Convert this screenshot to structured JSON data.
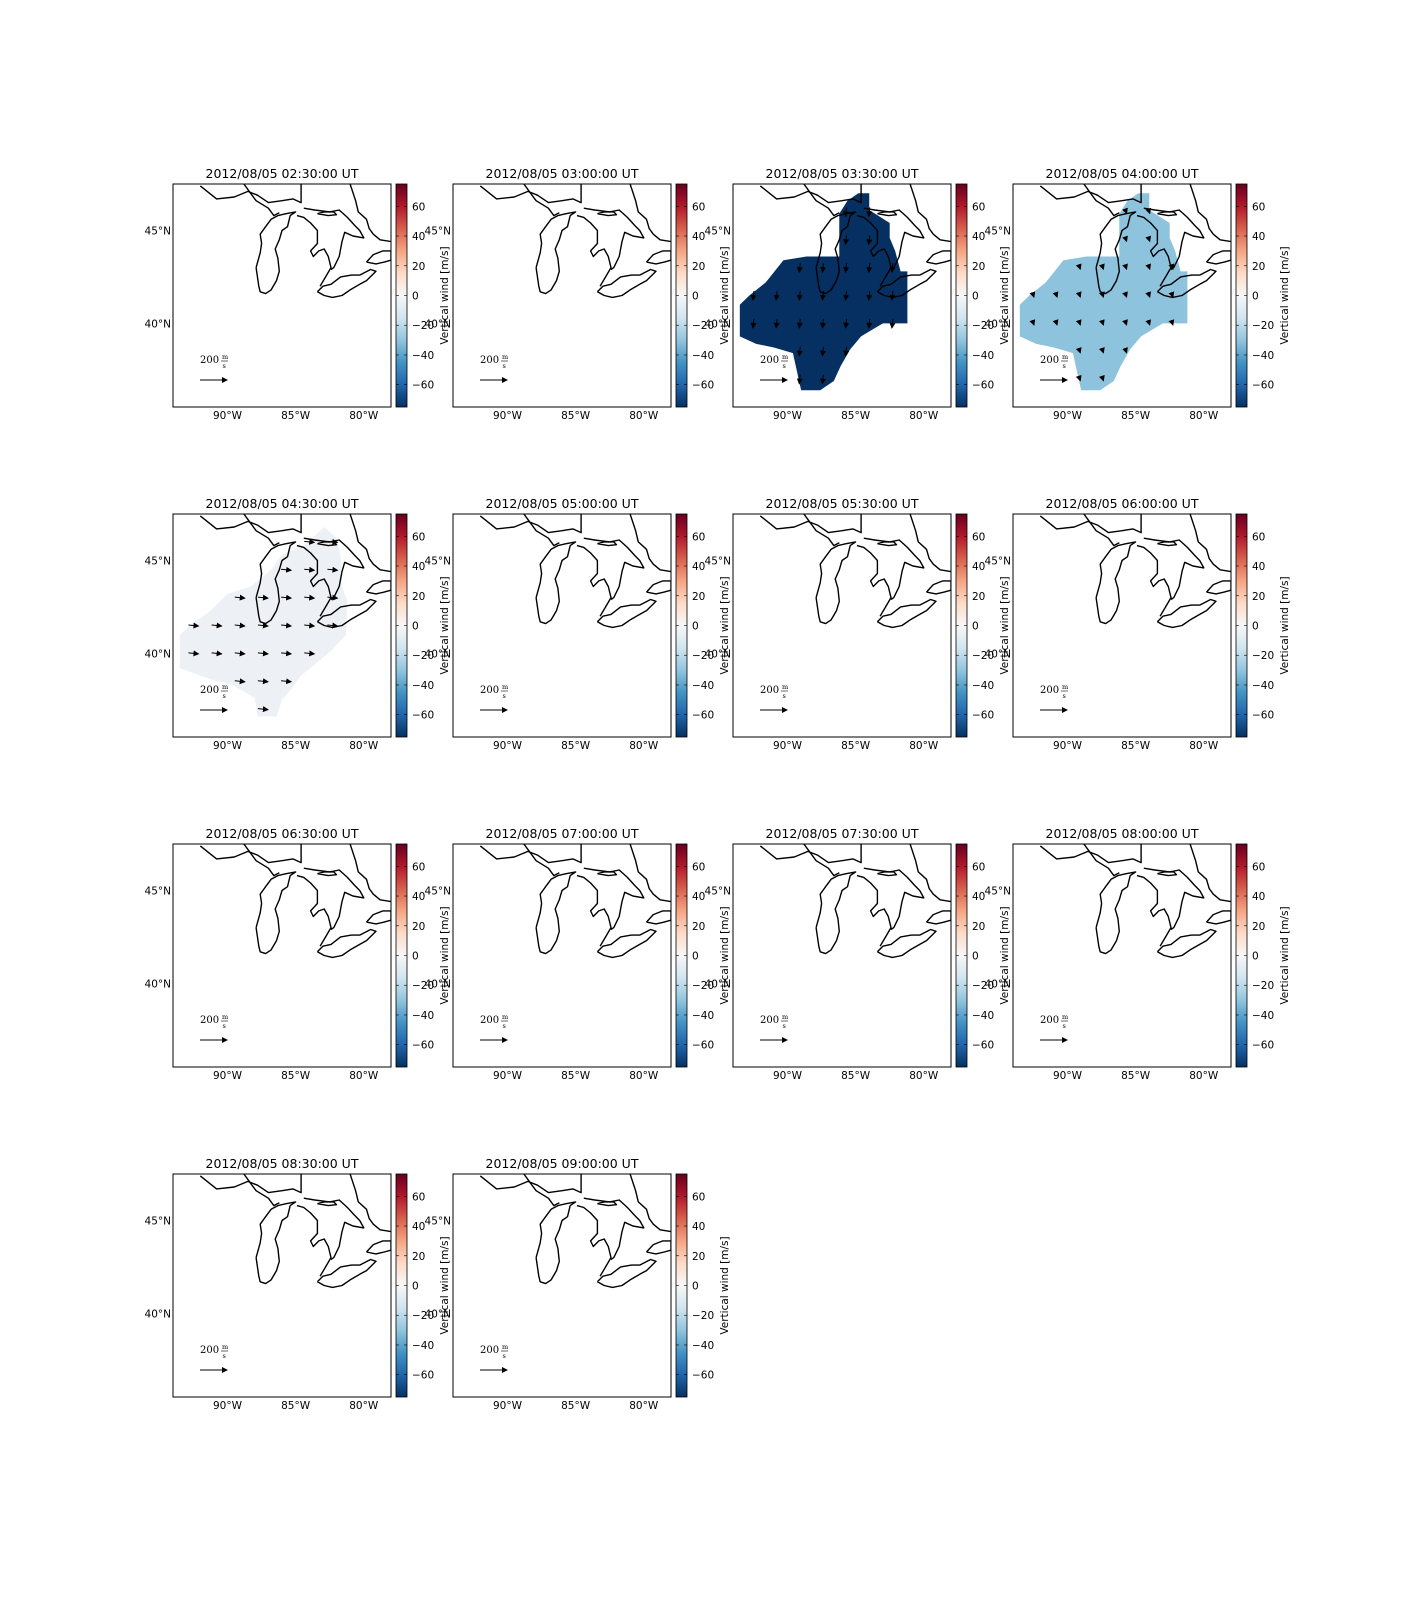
{
  "figure": {
    "colorbar": {
      "label": "Vertical wind [m/s]",
      "ticks": [
        "60",
        "40",
        "20",
        "0",
        "−20",
        "−40",
        "−60"
      ],
      "tick_values": [
        60,
        40,
        20,
        0,
        -20,
        -40,
        -60
      ],
      "range": [
        -75,
        75
      ],
      "colormap": "RdBu_r",
      "stops": [
        "#053061",
        "#2166ac",
        "#4393c3",
        "#92c5de",
        "#d1e5f0",
        "#f7f7f7",
        "#fddbc7",
        "#f4a582",
        "#d6604d",
        "#b2182b",
        "#67001f"
      ]
    },
    "axes_ticks": {
      "lon_labels": [
        "90°W",
        "85°W",
        "80°W"
      ],
      "lon_values": [
        -90,
        -85,
        -80
      ],
      "lat_labels": [
        "45°N",
        "40°N"
      ],
      "lat_values": [
        45,
        40
      ],
      "lon_range": [
        -94,
        -78
      ],
      "lat_range": [
        35.5,
        47.5
      ]
    },
    "quiver_key": {
      "value": "200",
      "unit_num": "m",
      "unit_den": "s"
    },
    "coastline_color": "#000000"
  },
  "panels": [
    {
      "title": "2012/08/05 02:30:00 UT",
      "field": "none"
    },
    {
      "title": "2012/08/05 03:00:00 UT",
      "field": "none"
    },
    {
      "title": "2012/08/05 03:30:00 UT",
      "field": "patch",
      "value": -75,
      "fill": "#053061",
      "arrow_style": "down"
    },
    {
      "title": "2012/08/05 04:00:00 UT",
      "field": "patch",
      "value": -30,
      "fill": "#8ec3de",
      "arrow_style": "tiny"
    },
    {
      "title": "2012/08/05 04:30:00 UT",
      "field": "patch",
      "value": -5,
      "fill": "#edf1f5",
      "arrow_style": "east"
    },
    {
      "title": "2012/08/05 05:00:00 UT",
      "field": "none"
    },
    {
      "title": "2012/08/05 05:30:00 UT",
      "field": "none"
    },
    {
      "title": "2012/08/05 06:00:00 UT",
      "field": "none"
    },
    {
      "title": "2012/08/05 06:30:00 UT",
      "field": "none"
    },
    {
      "title": "2012/08/05 07:00:00 UT",
      "field": "none"
    },
    {
      "title": "2012/08/05 07:30:00 UT",
      "field": "none"
    },
    {
      "title": "2012/08/05 08:00:00 UT",
      "field": "none"
    },
    {
      "title": "2012/08/05 08:30:00 UT",
      "field": "none"
    },
    {
      "title": "2012/08/05 09:00:00 UT",
      "field": "none"
    }
  ]
}
